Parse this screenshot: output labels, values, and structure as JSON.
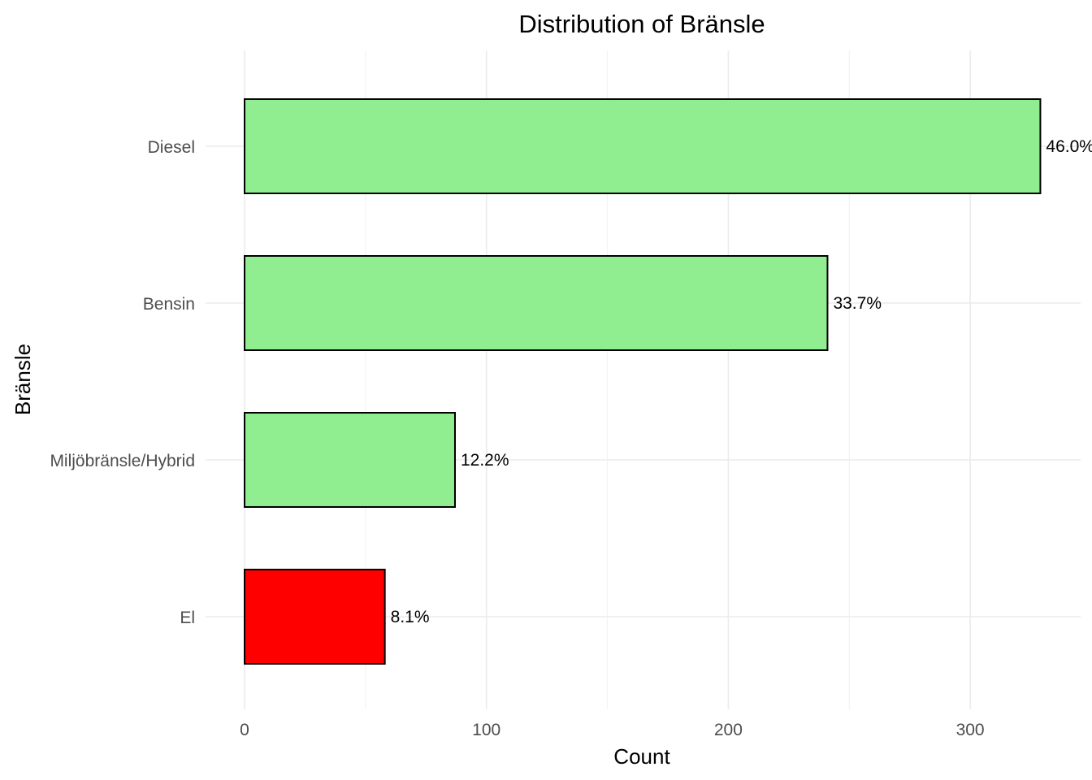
{
  "chart_data": {
    "type": "bar",
    "orientation": "horizontal",
    "title": "Distribution of  Bränsle",
    "xlabel": "Count",
    "ylabel": "Bränsle",
    "categories": [
      "Diesel",
      "Bensin",
      "Miljöbränsle/Hybrid",
      "El"
    ],
    "values": [
      329,
      241,
      87,
      58
    ],
    "labels": [
      "46.0%",
      "33.7%",
      "12.2%",
      "8.1%"
    ],
    "xlim": [
      0,
      345
    ],
    "xticks": [
      0,
      100,
      200,
      300
    ],
    "grid": true,
    "legend": "none",
    "colors": {
      "default": "#90ee90",
      "highlight": "#ff0000",
      "highlight_category": "El"
    }
  }
}
